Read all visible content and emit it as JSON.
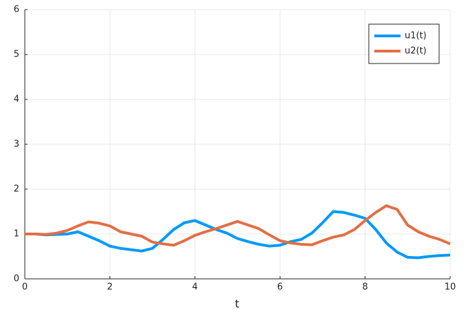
{
  "chart_data": {
    "type": "line",
    "xlabel": "t",
    "x": [
      0,
      0.25,
      0.5,
      0.75,
      1,
      1.25,
      1.5,
      1.75,
      2,
      2.25,
      2.5,
      2.75,
      3,
      3.25,
      3.5,
      3.75,
      4,
      4.25,
      4.5,
      4.75,
      5,
      5.25,
      5.5,
      5.75,
      6,
      6.25,
      6.5,
      6.75,
      7,
      7.25,
      7.5,
      7.75,
      8,
      8.25,
      8.5,
      8.75,
      9,
      9.25,
      9.5,
      9.75,
      10
    ],
    "series": [
      {
        "name": "u1(t)",
        "color": "#009af9",
        "values": [
          1.0,
          1.0,
          0.98,
          0.99,
          1.0,
          1.05,
          0.95,
          0.85,
          0.73,
          0.68,
          0.65,
          0.62,
          0.68,
          0.88,
          1.1,
          1.25,
          1.3,
          1.2,
          1.1,
          1.02,
          0.9,
          0.83,
          0.77,
          0.73,
          0.75,
          0.83,
          0.88,
          1.02,
          1.25,
          1.5,
          1.48,
          1.42,
          1.35,
          1.1,
          0.8,
          0.6,
          0.48,
          0.47,
          0.5,
          0.52,
          0.53
        ]
      },
      {
        "name": "u2(t)",
        "color": "#e26f46",
        "values": [
          1.0,
          1.0,
          0.99,
          1.02,
          1.08,
          1.18,
          1.27,
          1.24,
          1.18,
          1.05,
          1.0,
          0.95,
          0.82,
          0.78,
          0.75,
          0.85,
          0.97,
          1.05,
          1.12,
          1.2,
          1.28,
          1.2,
          1.12,
          0.98,
          0.85,
          0.8,
          0.77,
          0.76,
          0.85,
          0.93,
          0.98,
          1.1,
          1.3,
          1.48,
          1.63,
          1.55,
          1.2,
          1.05,
          0.95,
          0.88,
          0.78
        ]
      }
    ],
    "xlim": [
      0,
      10
    ],
    "xticks": [
      0,
      2,
      4,
      6,
      8,
      10
    ],
    "ylim": [
      0,
      6
    ],
    "yticks": [
      0,
      1,
      2,
      3,
      4,
      5,
      6
    ],
    "grid": true,
    "legend": "top-right"
  }
}
